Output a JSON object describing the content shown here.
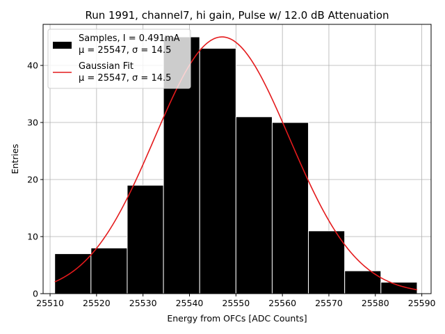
{
  "chart_data": {
    "type": "bar",
    "title": "Run 1991, channel7, hi gain, Pulse w/ 12.0 dB Attenuation",
    "xlabel": "Energy from OFCs [ADC Counts]",
    "ylabel": "Entries",
    "xlim": [
      25508.5,
      25592
    ],
    "ylim": [
      0,
      47.2
    ],
    "xticks": [
      25510,
      25520,
      25530,
      25540,
      25550,
      25560,
      25570,
      25580,
      25590
    ],
    "yticks": [
      0,
      10,
      20,
      30,
      40
    ],
    "grid": true,
    "legend_position": "top-left",
    "histogram": {
      "name": "Samples, I = 0.491mA",
      "stats": "μ = 25547, σ = 14.5",
      "bin_edges": [
        25511,
        25518.8,
        25526.6,
        25534.4,
        25542.2,
        25550,
        25557.8,
        25565.6,
        25573.4,
        25581.2,
        25589
      ],
      "values": [
        7,
        8,
        19,
        45,
        43,
        31,
        30,
        11,
        4,
        2
      ],
      "color": "#000000",
      "edgecolor": "#ffffff"
    },
    "fit": {
      "name": "Gaussian Fit",
      "stats": "μ = 25547, σ = 14.5",
      "mu": 25547,
      "sigma": 14.5,
      "amplitude": 45,
      "range": [
        25511,
        25589
      ],
      "color": "#e41a1c"
    }
  }
}
